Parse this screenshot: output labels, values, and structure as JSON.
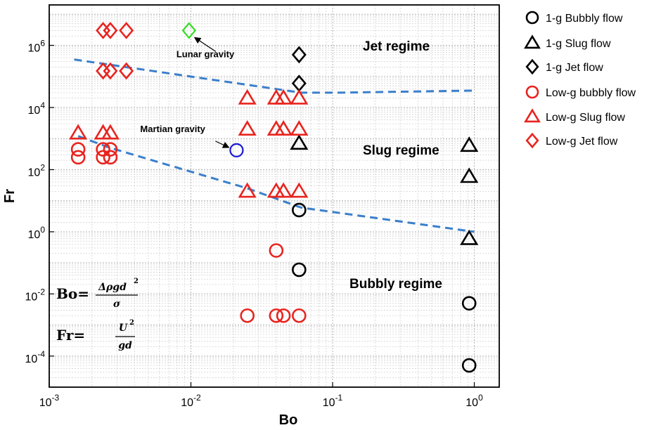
{
  "chart_data": {
    "type": "scatter",
    "title": "",
    "xlabel": "Bo",
    "ylabel": "Fr",
    "xscale": "log",
    "yscale": "log",
    "xlim": [
      0.001,
      1.5
    ],
    "ylim": [
      1e-05,
      20000000
    ],
    "grid": true,
    "legend_position": "right-outside",
    "x_ticks": [
      {
        "value": 0.001,
        "base": "10",
        "exp": "-3"
      },
      {
        "value": 0.01,
        "base": "10",
        "exp": "-2"
      },
      {
        "value": 0.1,
        "base": "10",
        "exp": "-1"
      },
      {
        "value": 1,
        "base": "10",
        "exp": "0"
      }
    ],
    "y_ticks": [
      {
        "value": 0.0001,
        "base": "10",
        "exp": "-4"
      },
      {
        "value": 0.01,
        "base": "10",
        "exp": "-2"
      },
      {
        "value": 1,
        "base": "10",
        "exp": "0"
      },
      {
        "value": 100,
        "base": "10",
        "exp": "2"
      },
      {
        "value": 10000,
        "base": "10",
        "exp": "4"
      },
      {
        "value": 1000000,
        "base": "10",
        "exp": "6"
      }
    ],
    "series": [
      {
        "name": "1-g Bubbly flow",
        "marker": "circle",
        "color": "#000000",
        "points": [
          [
            0.058,
            5
          ],
          [
            0.058,
            0.06
          ],
          [
            0.92,
            0.005
          ],
          [
            0.92,
            5e-05
          ]
        ]
      },
      {
        "name": "1-g Slug flow",
        "marker": "triangle",
        "color": "#000000",
        "points": [
          [
            0.058,
            700
          ],
          [
            0.92,
            600
          ],
          [
            0.92,
            60
          ],
          [
            0.92,
            0.6
          ]
        ]
      },
      {
        "name": "1-g Jet flow",
        "marker": "diamond",
        "color": "#000000",
        "points": [
          [
            0.058,
            500000
          ],
          [
            0.058,
            60000
          ]
        ]
      },
      {
        "name": "Low-g bubbly flow",
        "marker": "circle",
        "color": "#e8241f",
        "points": [
          [
            0.0016,
            450
          ],
          [
            0.0016,
            250
          ],
          [
            0.0024,
            450
          ],
          [
            0.0024,
            250
          ],
          [
            0.0027,
            450
          ],
          [
            0.0027,
            250
          ],
          [
            0.04,
            0.25
          ],
          [
            0.025,
            0.002
          ],
          [
            0.04,
            0.002
          ],
          [
            0.045,
            0.002
          ],
          [
            0.058,
            0.002
          ]
        ]
      },
      {
        "name": "Low-g Slug flow",
        "marker": "triangle",
        "color": "#e8241f",
        "points": [
          [
            0.0016,
            1500
          ],
          [
            0.0024,
            1500
          ],
          [
            0.0027,
            1500
          ],
          [
            0.025,
            20000
          ],
          [
            0.04,
            20000
          ],
          [
            0.045,
            20000
          ],
          [
            0.058,
            20000
          ],
          [
            0.025,
            2000
          ],
          [
            0.04,
            2000
          ],
          [
            0.045,
            2000
          ],
          [
            0.058,
            2000
          ],
          [
            0.025,
            20
          ],
          [
            0.04,
            20
          ],
          [
            0.045,
            20
          ],
          [
            0.058,
            20
          ]
        ]
      },
      {
        "name": "Low-g Jet flow",
        "marker": "diamond",
        "color": "#e8241f",
        "points": [
          [
            0.0024,
            3000000
          ],
          [
            0.0027,
            3000000
          ],
          [
            0.0035,
            3000000
          ],
          [
            0.0024,
            150000
          ],
          [
            0.0027,
            150000
          ],
          [
            0.0035,
            150000
          ]
        ]
      }
    ],
    "special_points": [
      {
        "label": "Lunar gravity",
        "marker": "diamond",
        "color": "#33dd22",
        "x": 0.0097,
        "y": 3000000
      },
      {
        "label": "Martian gravity",
        "marker": "circle",
        "color": "#1a1ad8",
        "x": 0.021,
        "y": 420
      }
    ],
    "boundaries": [
      {
        "style": "dashed",
        "color": "#3a7fcb",
        "points": [
          [
            0.0015,
            350000
          ],
          [
            0.06,
            30000
          ],
          [
            0.11,
            30000
          ],
          [
            1.0,
            35000
          ]
        ]
      },
      {
        "style": "dashed",
        "color": "#3a7fcb",
        "points": [
          [
            0.0016,
            1200
          ],
          [
            0.0027,
            500
          ],
          [
            0.025,
            25
          ],
          [
            0.06,
            6
          ],
          [
            1.0,
            1
          ]
        ]
      }
    ],
    "regions": [
      {
        "label": "Jet regime"
      },
      {
        "label": "Slug regime"
      },
      {
        "label": "Bubbly regime"
      }
    ],
    "formulas": {
      "bo_lhs": "Bo=",
      "bo_num": "Δρgd",
      "bo_num_exp": "2",
      "bo_den": "σ",
      "fr_lhs": "Fr=",
      "fr_num": "U",
      "fr_num_exp": "2",
      "fr_den": "gd"
    }
  }
}
